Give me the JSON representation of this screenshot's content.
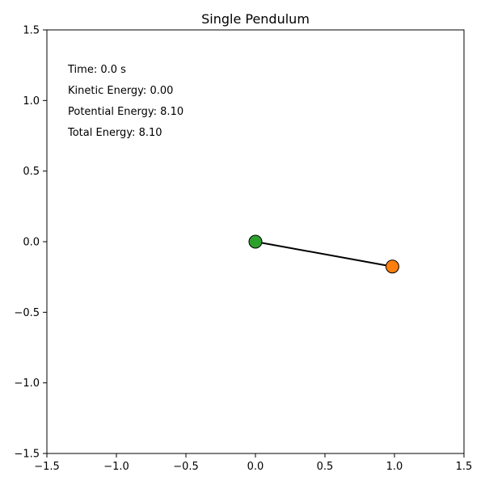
{
  "chart_data": {
    "type": "scatter",
    "title": "Single Pendulum",
    "xlabel": "",
    "ylabel": "",
    "xlim": [
      -1.5,
      1.5
    ],
    "ylim": [
      -1.5,
      1.5
    ],
    "x_ticks": [
      -1.5,
      -1.0,
      -0.5,
      0.0,
      0.5,
      1.0,
      1.5
    ],
    "y_ticks": [
      -1.5,
      -1.0,
      -0.5,
      0.0,
      0.5,
      1.0,
      1.5
    ],
    "x_tick_labels": [
      "−1.5",
      "−1.0",
      "−0.5",
      "0.0",
      "0.5",
      "1.0",
      "1.5"
    ],
    "y_tick_labels": [
      "−1.5",
      "−1.0",
      "−0.5",
      "0.0",
      "0.5",
      "1.0",
      "1.5"
    ],
    "grid": false,
    "rod": {
      "from": [
        0.0,
        0.0
      ],
      "to": [
        0.985,
        -0.176
      ],
      "color": "#000000"
    },
    "points": [
      {
        "x": 0.0,
        "y": 0.0,
        "color": "#2ca02c"
      },
      {
        "x": 0.985,
        "y": -0.176,
        "color": "#ff7f0e"
      }
    ],
    "annotations": [
      "Time: 0.0 s",
      "Kinetic Energy: 0.00",
      "Potential Energy: 8.10",
      "Total Energy: 8.10"
    ]
  }
}
